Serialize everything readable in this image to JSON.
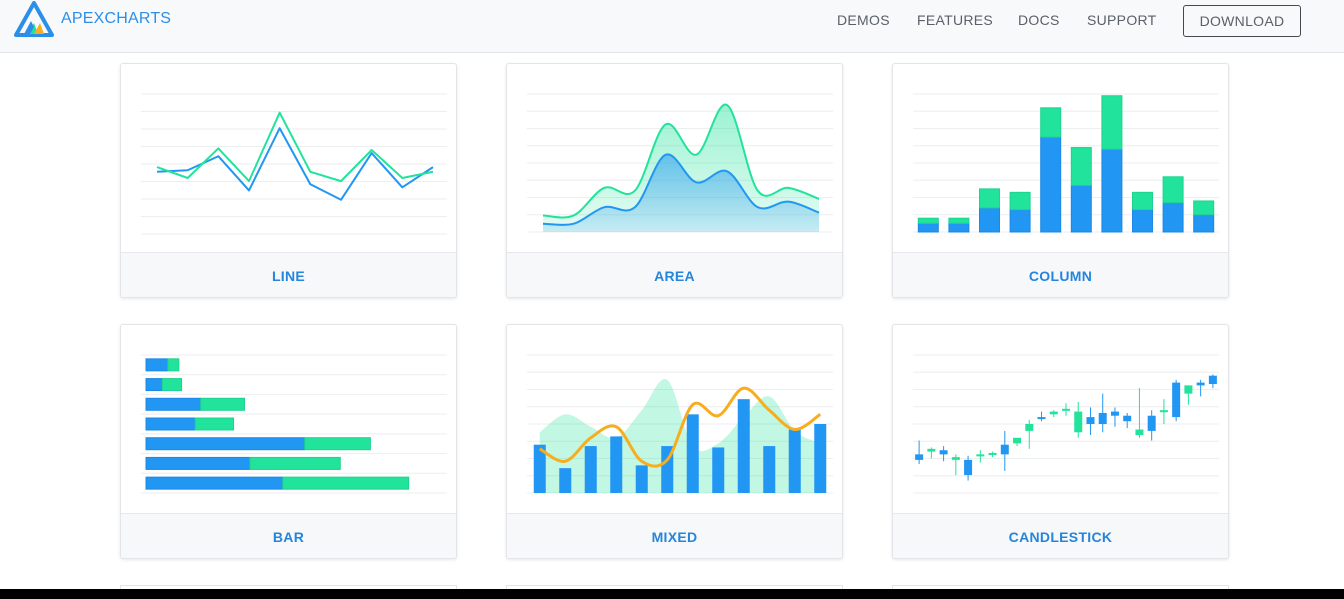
{
  "brand": {
    "name": "APEXCHARTS",
    "logo_icon": "apexcharts-logo-icon"
  },
  "nav": {
    "links": [
      "DEMOS",
      "FEATURES",
      "DOCS",
      "SUPPORT"
    ],
    "download_label": "DOWNLOAD"
  },
  "colors": {
    "accent": "#2585dc",
    "blue": "#2196f3",
    "green": "#22e39b",
    "orange": "#f8ad1e"
  },
  "cards": [
    {
      "label": "LINE"
    },
    {
      "label": "AREA"
    },
    {
      "label": "COLUMN"
    },
    {
      "label": "BAR"
    },
    {
      "label": "MIXED"
    },
    {
      "label": "CANDLESTICK"
    }
  ],
  "chart_data": [
    {
      "type": "line",
      "x": [
        1,
        2,
        3,
        4,
        5,
        6,
        7,
        8,
        9,
        10
      ],
      "series": [
        {
          "values": [
            30,
            31,
            40,
            18,
            58,
            22,
            12,
            42,
            20,
            33
          ]
        },
        {
          "values": [
            33,
            26,
            45,
            24,
            68,
            30,
            24,
            44,
            26,
            30
          ]
        }
      ],
      "ylim": [
        -10,
        80
      ]
    },
    {
      "type": "area",
      "x": [
        1,
        2,
        3,
        4,
        5,
        6,
        7,
        8,
        9,
        10
      ],
      "series": [
        {
          "values": [
            12,
            12,
            32,
            30,
            78,
            56,
            92,
            30,
            32,
            24
          ]
        },
        {
          "values": [
            6,
            6,
            18,
            18,
            56,
            36,
            44,
            18,
            22,
            14
          ]
        }
      ],
      "ylim": [
        0,
        100
      ]
    },
    {
      "type": "bar",
      "categories": [
        "1",
        "2",
        "3",
        "4",
        "5",
        "6",
        "7",
        "8",
        "9",
        "10"
      ],
      "series": [
        {
          "values": [
            5,
            5,
            14,
            13,
            55,
            27,
            48,
            13,
            17,
            10
          ]
        },
        {
          "values": [
            3,
            3,
            11,
            10,
            17,
            22,
            31,
            10,
            15,
            8
          ]
        }
      ],
      "ylim": [
        0,
        80
      ]
    },
    {
      "type": "bar",
      "orientation": "horizontal",
      "categories": [
        "1",
        "2",
        "3",
        "4",
        "5",
        "6",
        "7"
      ],
      "series": [
        {
          "values": [
            8,
            6,
            20,
            18,
            58,
            38,
            50
          ]
        },
        {
          "values": [
            4,
            7,
            16,
            14,
            24,
            33,
            46
          ]
        }
      ],
      "xlim": [
        0,
        110
      ]
    },
    {
      "type": "bar",
      "subtype": "mixed",
      "x": [
        1,
        2,
        3,
        4,
        5,
        6,
        7,
        8,
        9,
        10,
        11,
        12
      ],
      "series": [
        {
          "type": "column",
          "values": [
            35,
            18,
            34,
            41,
            20,
            34,
            57,
            33,
            68,
            34,
            46,
            50
          ]
        },
        {
          "type": "area",
          "values": [
            44,
            57,
            48,
            40,
            60,
            82,
            34,
            36,
            55,
            70,
            45,
            36
          ]
        },
        {
          "type": "line",
          "values": [
            32,
            23,
            40,
            48,
            23,
            24,
            64,
            56,
            76,
            60,
            46,
            57
          ]
        }
      ],
      "ylim": [
        0,
        100
      ]
    },
    {
      "type": "candlestick",
      "x": [
        1,
        2,
        3,
        4,
        5,
        6,
        7,
        8,
        9,
        10,
        11,
        12,
        13,
        14,
        15,
        16,
        17,
        18,
        19,
        20,
        21,
        22,
        23,
        24,
        25
      ],
      "series": [
        {
          "values": [
            [
              28,
              38,
              24,
              21
            ],
            [
              30,
              33,
              32,
              25
            ],
            [
              31,
              34,
              28,
              23
            ],
            [
              24,
              28,
              26,
              13
            ],
            [
              24,
              27,
              13,
              9
            ],
            [
              27,
              31,
              28,
              22
            ],
            [
              28,
              30,
              29,
              26
            ],
            [
              35,
              45,
              28,
              16
            ],
            [
              36,
              38,
              40,
              34
            ],
            [
              45,
              53,
              50,
              32
            ],
            [
              55,
              59,
              54,
              52
            ],
            [
              57,
              60,
              59,
              55
            ],
            [
              60,
              65,
              61,
              56
            ],
            [
              44,
              66,
              59,
              40
            ],
            [
              55,
              62,
              50,
              42
            ],
            [
              58,
              72,
              50,
              44
            ],
            [
              59,
              62,
              56,
              48
            ],
            [
              56,
              58,
              52,
              47
            ],
            [
              42,
              76,
              46,
              40
            ],
            [
              56,
              60,
              45,
              38
            ],
            [
              60,
              68,
              60,
              50
            ],
            [
              80,
              82,
              55,
              52
            ],
            [
              72,
              74,
              78,
              64
            ],
            [
              80,
              82,
              78,
              70
            ],
            [
              85,
              86,
              79,
              76
            ]
          ]
        }
      ],
      "ylim": [
        0,
        100
      ]
    }
  ]
}
